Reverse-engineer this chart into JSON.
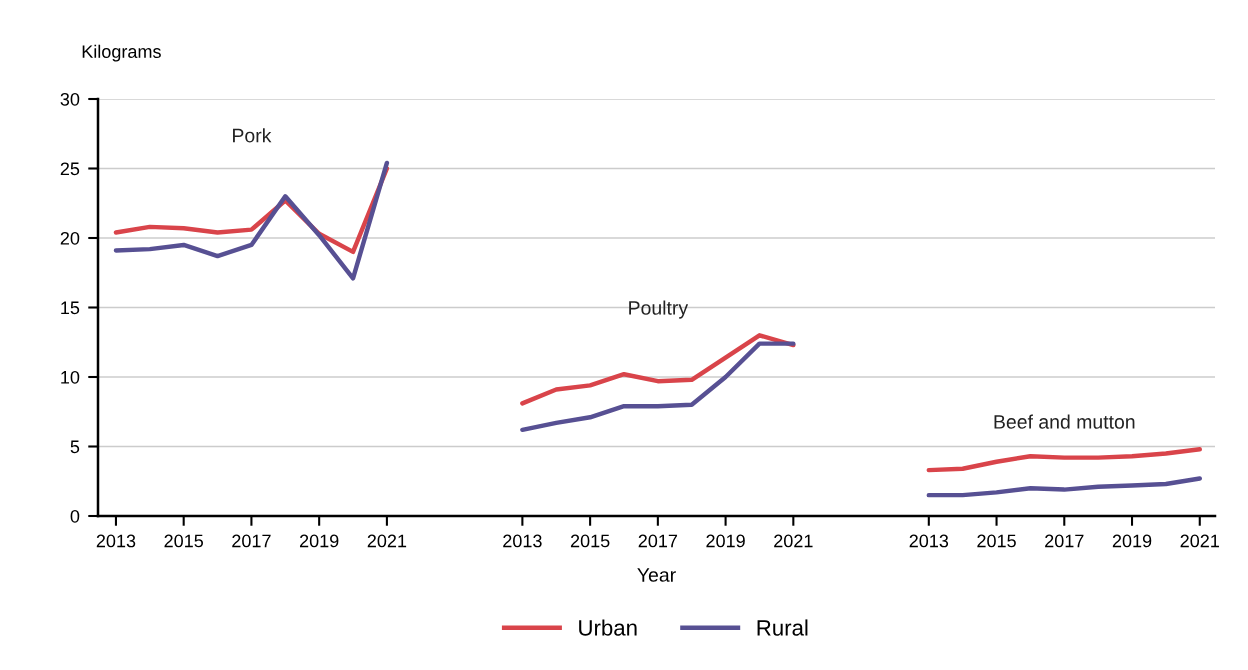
{
  "chart_data": {
    "type": "line",
    "ylabel": "Kilograms",
    "xlabel": "Year",
    "categories": [
      "2013",
      null,
      "2015",
      null,
      "2017",
      null,
      "2019",
      null,
      "2021",
      null,
      null,
      null,
      "2013",
      null,
      "2015",
      null,
      "2017",
      null,
      "2019",
      null,
      "2021",
      null,
      null,
      null,
      "2013",
      null,
      "2015",
      null,
      "2017",
      null,
      "2019",
      null,
      "2021"
    ],
    "series": [
      {
        "name": "Urban",
        "color": "#d9444a",
        "values": [
          20.4,
          20.8,
          20.7,
          20.4,
          20.6,
          22.7,
          20.3,
          19.0,
          25.0,
          null,
          null,
          null,
          8.1,
          9.1,
          9.4,
          10.2,
          9.7,
          9.8,
          11.4,
          13.0,
          12.3,
          null,
          null,
          null,
          3.3,
          3.4,
          3.9,
          4.3,
          4.2,
          4.2,
          4.3,
          4.5,
          4.8
        ]
      },
      {
        "name": "Rural",
        "color": "#575093",
        "values": [
          19.1,
          19.2,
          19.5,
          18.7,
          19.5,
          23.0,
          20.2,
          17.1,
          25.4,
          null,
          null,
          null,
          6.2,
          6.7,
          7.1,
          7.9,
          7.9,
          8.0,
          10.0,
          12.4,
          12.4,
          null,
          null,
          null,
          1.5,
          1.5,
          1.7,
          2.0,
          1.9,
          2.1,
          2.2,
          2.3,
          2.7
        ]
      }
    ],
    "ylim": [
      0,
      30
    ],
    "yticks": [
      0,
      5,
      10,
      15,
      20,
      25,
      30
    ],
    "grid": "y",
    "legend": "bottom",
    "marker": "none",
    "line_style": "solid",
    "annotations": [
      "Pork",
      "Poultry",
      "Beef and mutton"
    ]
  }
}
